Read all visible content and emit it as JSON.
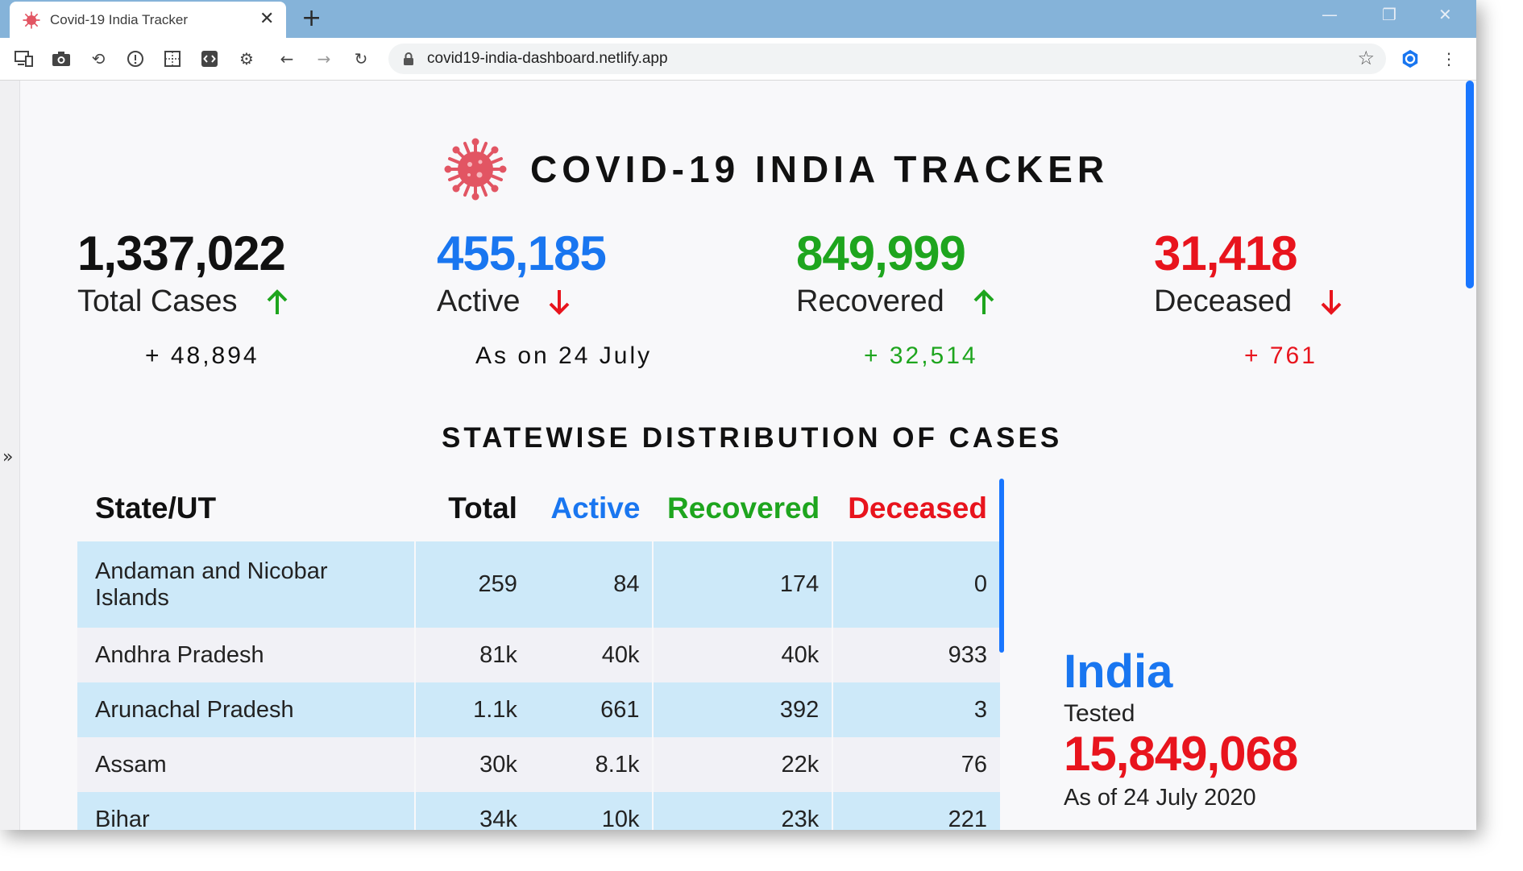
{
  "browser": {
    "tab_title": "Covid-19 India Tracker",
    "url": "covid19-india-dashboard.netlify.app",
    "new_tab_symbol": "+",
    "close_symbol": "✕"
  },
  "header": {
    "title": "COVID-19 INDIA TRACKER"
  },
  "stats": {
    "total": {
      "value": "1,337,022",
      "label": "Total Cases",
      "delta": "+ 48,894",
      "trend": "up"
    },
    "active": {
      "value": "455,185",
      "label": "Active",
      "delta": "As on 24 July",
      "trend": "down"
    },
    "recovered": {
      "value": "849,999",
      "label": "Recovered",
      "delta": "+ 32,514",
      "trend": "up"
    },
    "deceased": {
      "value": "31,418",
      "label": "Deceased",
      "delta": "+ 761",
      "trend": "down"
    }
  },
  "colors": {
    "active": "#1976f0",
    "recovered": "#1ea51e",
    "deceased": "#e8141d",
    "row_highlight": "#cde9f9"
  },
  "statewise": {
    "title": "STATEWISE DISTRIBUTION OF CASES",
    "columns": [
      "State/UT",
      "Total",
      "Active",
      "Recovered",
      "Deceased"
    ],
    "rows": [
      {
        "state": "Andaman and Nicobar Islands",
        "total": "259",
        "active": "84",
        "recovered": "174",
        "deceased": "0"
      },
      {
        "state": "Andhra Pradesh",
        "total": "81k",
        "active": "40k",
        "recovered": "40k",
        "deceased": "933"
      },
      {
        "state": "Arunachal Pradesh",
        "total": "1.1k",
        "active": "661",
        "recovered": "392",
        "deceased": "3"
      },
      {
        "state": "Assam",
        "total": "30k",
        "active": "8.1k",
        "recovered": "22k",
        "deceased": "76"
      },
      {
        "state": "Bihar",
        "total": "34k",
        "active": "10k",
        "recovered": "23k",
        "deceased": "221"
      }
    ]
  },
  "india_panel": {
    "name": "India",
    "tested_label": "Tested",
    "tested_count": "15,849,068",
    "as_of": "As of 24 July 2020"
  },
  "icons": [
    "covid-virus-icon",
    "devices-icon",
    "camera-icon",
    "refresh-alt-icon",
    "info-icon",
    "grid-icon",
    "code-icon",
    "gear-icon",
    "back-icon",
    "forward-icon",
    "reload-icon",
    "lock-icon",
    "star-icon",
    "extension-icon",
    "kebab-menu-icon",
    "up-arrow-icon",
    "down-arrow-icon",
    "expand-icon"
  ]
}
